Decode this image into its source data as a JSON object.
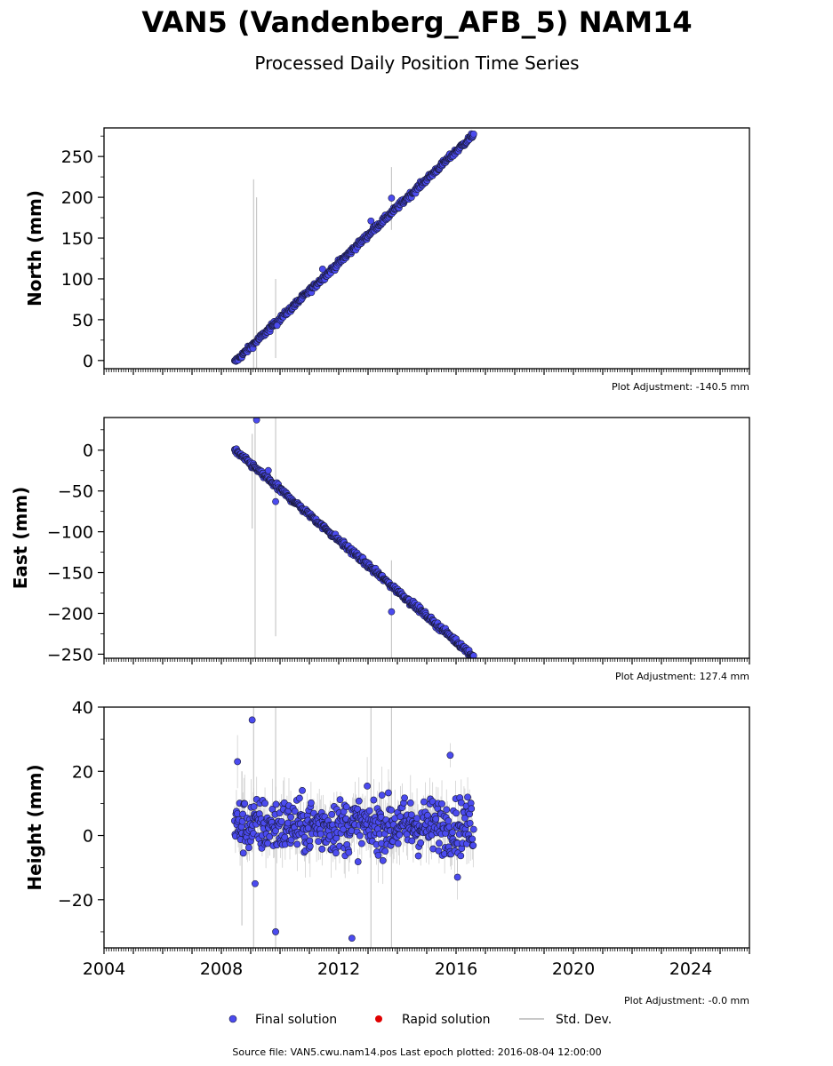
{
  "title": "VAN5 (Vandenberg_AFB_5) NAM14",
  "subtitle": "Processed Daily Position Time Series",
  "footer": "Source file: VAN5.cwu.nam14.pos  Last epoch plotted: 2016-08-04 12:00:00",
  "legend": {
    "final_label": "Final solution",
    "rapid_label": "Rapid solution",
    "std_label": "Std. Dev.",
    "placement": "bottom-center"
  },
  "colors": {
    "final": "#4b4bef",
    "rapid": "#e00000",
    "std": "#c8c8c8",
    "marker_edge": "#1a1a3a"
  },
  "chart_data": [
    {
      "type": "scatter",
      "ylabel": "North (mm)",
      "adjustment": "Plot Adjustment: -140.5 mm",
      "xlim": [
        2004,
        2026
      ],
      "ylim": [
        -10,
        285
      ],
      "yticks": [
        0,
        50,
        100,
        150,
        200,
        250
      ],
      "start_year": 2008.45,
      "end_year": 2016.6,
      "start_value": -2,
      "end_value": 277,
      "noise": 2.5,
      "outliers": [
        {
          "x": 2013.8,
          "y": 199
        },
        {
          "x": 2013.1,
          "y": 171
        },
        {
          "x": 2009.9,
          "y": 43
        },
        {
          "x": 2011.45,
          "y": 112
        }
      ],
      "big_errors": [
        {
          "x": 2009.1,
          "lo": -10,
          "hi": 222
        },
        {
          "x": 2009.2,
          "lo": -10,
          "hi": 200
        },
        {
          "x": 2009.85,
          "lo": 3,
          "hi": 100
        },
        {
          "x": 2013.8,
          "lo": 160,
          "hi": 237
        }
      ]
    },
    {
      "type": "scatter",
      "ylabel": "East (mm)",
      "adjustment": "Plot Adjustment: 127.4 mm",
      "xlim": [
        2004,
        2026
      ],
      "ylim": [
        -255,
        40
      ],
      "yticks": [
        0,
        -50,
        -100,
        -150,
        -200,
        -250
      ],
      "start_year": 2008.45,
      "end_year": 2016.6,
      "start_value": 0,
      "end_value": -253,
      "noise": 2.5,
      "outliers": [
        {
          "x": 2009.2,
          "y": 37
        },
        {
          "x": 2009.85,
          "y": -63
        },
        {
          "x": 2013.8,
          "y": -198
        },
        {
          "x": 2009.6,
          "y": -25
        }
      ],
      "big_errors": [
        {
          "x": 2009.15,
          "lo": -255,
          "hi": 40
        },
        {
          "x": 2009.85,
          "lo": -228,
          "hi": 40
        },
        {
          "x": 2009.05,
          "lo": -96,
          "hi": 20
        },
        {
          "x": 2013.8,
          "lo": -255,
          "hi": -135
        }
      ]
    },
    {
      "type": "scatter",
      "ylabel": "Height (mm)",
      "adjustment": "Plot Adjustment: -0.0 mm",
      "xlim": [
        2004,
        2026
      ],
      "ylim": [
        -35,
        40
      ],
      "yticks": [
        40,
        20,
        0,
        -20
      ],
      "xticks": [
        2004,
        2008,
        2012,
        2016,
        2020,
        2024
      ],
      "start_year": 2008.45,
      "end_year": 2016.6,
      "start_value": 3,
      "end_value": 3,
      "noise": 6,
      "outliers": [
        {
          "x": 2008.55,
          "y": 23
        },
        {
          "x": 2009.05,
          "y": 36
        },
        {
          "x": 2009.85,
          "y": -30
        },
        {
          "x": 2012.45,
          "y": -32
        },
        {
          "x": 2015.8,
          "y": 25
        },
        {
          "x": 2009.15,
          "y": -15
        },
        {
          "x": 2016.05,
          "y": -13
        }
      ],
      "big_errors": [
        {
          "x": 2009.1,
          "lo": -35,
          "hi": 40
        },
        {
          "x": 2009.85,
          "lo": -35,
          "hi": 40
        },
        {
          "x": 2013.1,
          "lo": -35,
          "hi": 40
        },
        {
          "x": 2013.8,
          "lo": -35,
          "hi": 40
        },
        {
          "x": 2008.7,
          "lo": -28,
          "hi": 20
        }
      ]
    }
  ]
}
